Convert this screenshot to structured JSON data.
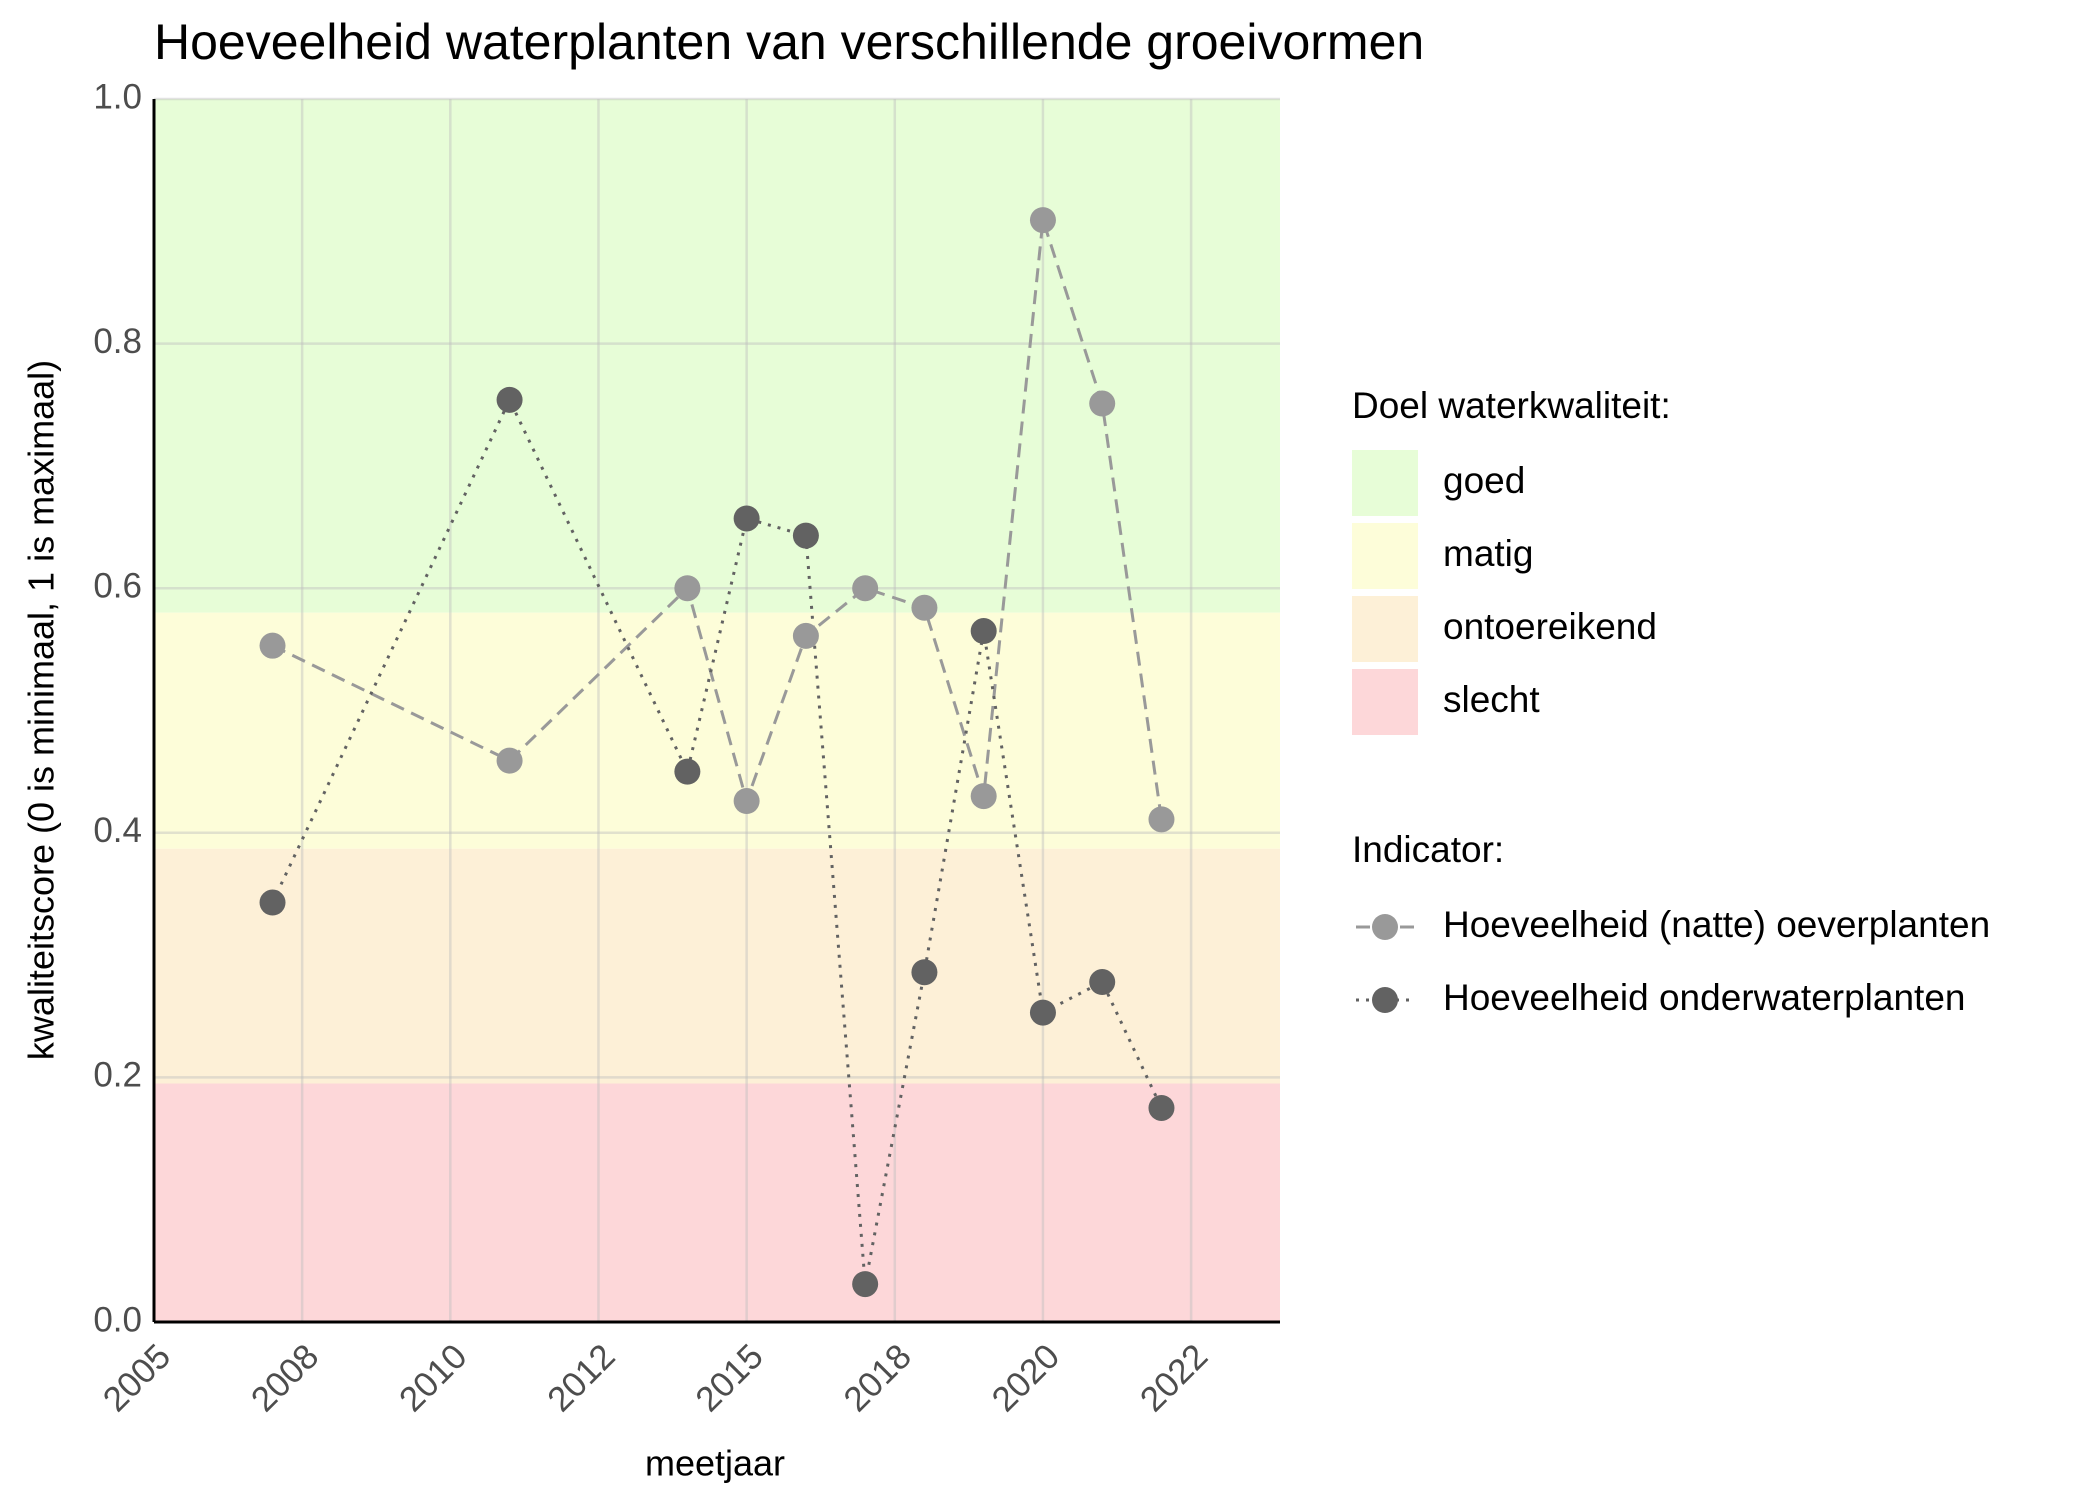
{
  "chart_data": {
    "type": "line",
    "title": "Hoeveelheid waterplanten van verschillende groeivormen",
    "x_label": "meetjaar",
    "y_label": "kwaliteitscore (0 is minimaal, 1 is maximaal)",
    "x": [
      2007,
      2011,
      2014,
      2015,
      2016,
      2017,
      2018,
      2019,
      2020,
      2021,
      2022
    ],
    "xlim": [
      2005,
      2024
    ],
    "xticks": [
      {
        "value": 2005,
        "label": "2005"
      },
      {
        "value": 2007.5,
        "label": "2008"
      },
      {
        "value": 2010,
        "label": "2010"
      },
      {
        "value": 2012.5,
        "label": "2012"
      },
      {
        "value": 2015,
        "label": "2015"
      },
      {
        "value": 2017.5,
        "label": "2018"
      },
      {
        "value": 2020,
        "label": "2020"
      },
      {
        "value": 2022.5,
        "label": "2022"
      }
    ],
    "ylim": [
      0,
      1
    ],
    "yticks": [
      {
        "value": 0,
        "label": "0.0"
      },
      {
        "value": 0.2,
        "label": "0.2"
      },
      {
        "value": 0.4,
        "label": "0.4"
      },
      {
        "value": 0.6,
        "label": "0.6"
      },
      {
        "value": 0.8,
        "label": "0.8"
      },
      {
        "value": 1,
        "label": "1.0"
      }
    ],
    "grid": true,
    "bands_title": "Doel waterkwaliteit:",
    "bands": [
      {
        "name": "goed",
        "color": "#e7fdd7",
        "from": 0.58,
        "to": 1
      },
      {
        "name": "matig",
        "color": "#fdfdd9",
        "from": 0.387,
        "to": 0.58
      },
      {
        "name": "ontoereikend",
        "color": "#fdf0d7",
        "from": 0.195,
        "to": 0.387
      },
      {
        "name": "slecht",
        "color": "#fdd7d9",
        "from": 0,
        "to": 0.195
      }
    ],
    "legend_title": "Indicator:",
    "series": [
      {
        "name": "Hoeveelheid (natte) oeverplanten",
        "color": "#999999",
        "linestyle": "dashed",
        "values": [
          0.553,
          0.459,
          0.6,
          0.426,
          0.561,
          0.6,
          0.584,
          0.43,
          0.901,
          0.751,
          0.411
        ]
      },
      {
        "name": "Hoeveelheid onderwaterplanten",
        "color": "#626262",
        "linestyle": "dotted",
        "values": [
          0.343,
          0.754,
          0.45,
          0.657,
          0.643,
          0.031,
          0.286,
          0.565,
          0.253,
          0.278,
          0.175
        ]
      }
    ]
  }
}
